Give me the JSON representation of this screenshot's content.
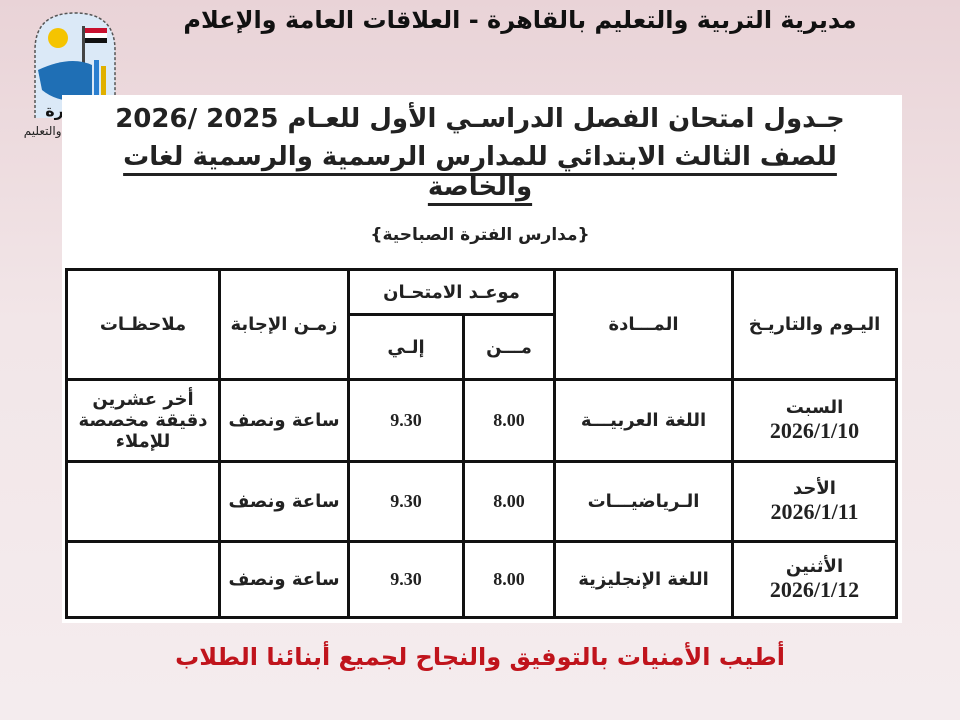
{
  "header": {
    "title": "مديرية التربية والتعليم بالقاهرة - العلاقات العامة والإعلام"
  },
  "logo": {
    "text": "القاهرة",
    "caption": "مديرية التربية والتعليم"
  },
  "document": {
    "title_line1": "جـدول امتحان الفصل الدراسـي الأول للعـام 2025 /2026",
    "title_line2": "للصف الثالث الابتدائي للمدارس الرسمية والرسمية لغات والخاصة",
    "period": "{مدارس الفترة الصباحية}"
  },
  "table": {
    "headers": {
      "day_date": "اليـوم والتاريـخ",
      "subject": "المـــادة",
      "exam_time": "موعـد الامتحـان",
      "from": "مـــن",
      "to": "إلـي",
      "duration": "زمـن الإجابة",
      "notes": "ملاحظـات"
    },
    "rows": [
      {
        "day": "السبت",
        "date": "2026/1/10",
        "subject": "اللغة العربيـــة",
        "from": "8.00",
        "to": "9.30",
        "duration": "ساعة ونصف",
        "notes": "أخر عشرين دقيقة مخصصة للإملاء"
      },
      {
        "day": "الأحد",
        "date": "2026/1/11",
        "subject": "الـرياضيـــات",
        "from": "8.00",
        "to": "9.30",
        "duration": "ساعة ونصف",
        "notes": ""
      },
      {
        "day": "الأثنين",
        "date": "2026/1/12",
        "subject": "اللغة الإنجليزية",
        "from": "8.00",
        "to": "9.30",
        "duration": "ساعة ونصف",
        "notes": ""
      }
    ]
  },
  "footer": {
    "message": "أطيب الأمنيات بالتوفيق والنجاح لجميع أبنائنا الطلاب",
    "color": "#c0141c"
  }
}
